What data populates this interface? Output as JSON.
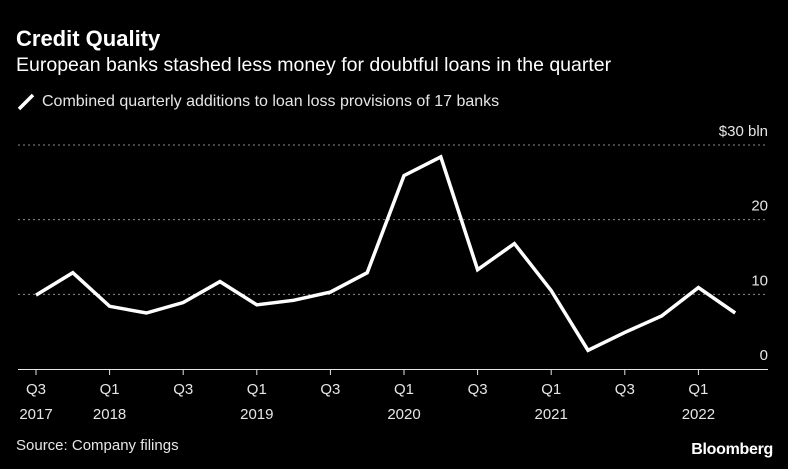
{
  "title": "Credit Quality",
  "subtitle": "European banks stashed less money for doubtful loans in the quarter",
  "source": "Source: Company filings",
  "brand": "Bloomberg",
  "colors": {
    "background": "#000000",
    "line": "#ffffff",
    "grid": "#8c8c8c",
    "text": "#e6e6e6"
  },
  "chart_data": {
    "type": "line",
    "title": "Credit Quality",
    "subtitle": "European banks stashed less money for doubtful loans in the quarter",
    "ylabel": "",
    "xlabel": "",
    "ylim": [
      0,
      30
    ],
    "y_ticks": [
      {
        "value": 30,
        "label": "$30 bln"
      },
      {
        "value": 20,
        "label": "20"
      },
      {
        "value": 10,
        "label": "10"
      },
      {
        "value": 0,
        "label": "0"
      }
    ],
    "x": [
      "Q3 2017",
      "Q4 2017",
      "Q1 2018",
      "Q2 2018",
      "Q3 2018",
      "Q4 2018",
      "Q1 2019",
      "Q2 2019",
      "Q3 2019",
      "Q4 2019",
      "Q1 2020",
      "Q2 2020",
      "Q3 2020",
      "Q4 2020",
      "Q1 2021",
      "Q2 2021",
      "Q3 2021",
      "Q4 2021",
      "Q1 2022",
      "Q2 2022"
    ],
    "x_ticks": [
      {
        "index": 0,
        "quarter": "Q3",
        "year": "2017"
      },
      {
        "index": 2,
        "quarter": "Q1",
        "year": "2018"
      },
      {
        "index": 4,
        "quarter": "Q3",
        "year": ""
      },
      {
        "index": 6,
        "quarter": "Q1",
        "year": "2019"
      },
      {
        "index": 8,
        "quarter": "Q3",
        "year": ""
      },
      {
        "index": 10,
        "quarter": "Q1",
        "year": "2020"
      },
      {
        "index": 12,
        "quarter": "Q3",
        "year": ""
      },
      {
        "index": 14,
        "quarter": "Q1",
        "year": "2021"
      },
      {
        "index": 16,
        "quarter": "Q3",
        "year": ""
      },
      {
        "index": 18,
        "quarter": "Q1",
        "year": "2022"
      }
    ],
    "grid": true,
    "series": [
      {
        "name": "Combined quarterly additions to loan loss provisions of 17 banks",
        "color": "#ffffff",
        "values": [
          9.9,
          12.9,
          8.4,
          7.5,
          8.9,
          11.7,
          8.6,
          9.2,
          10.3,
          12.9,
          25.9,
          28.4,
          13.3,
          16.8,
          10.5,
          2.5,
          4.9,
          7.1,
          10.9,
          7.5
        ]
      }
    ]
  }
}
